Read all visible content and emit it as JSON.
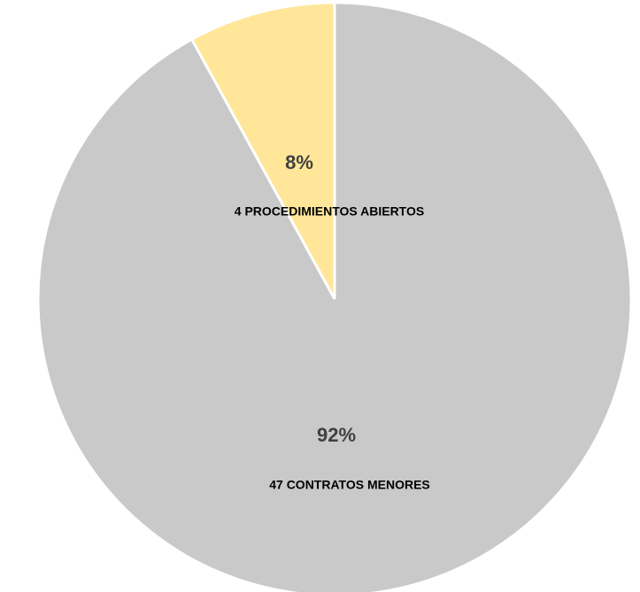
{
  "chart_data": {
    "type": "pie",
    "categories": [
      "4 PROCEDIMIENTOS ABIERTOS",
      "47 CONTRATOS MENORES"
    ],
    "values": [
      8,
      92
    ],
    "value_labels": [
      "8%",
      "92%"
    ],
    "colors": [
      "#ffe699",
      "#c9c9c9"
    ]
  }
}
